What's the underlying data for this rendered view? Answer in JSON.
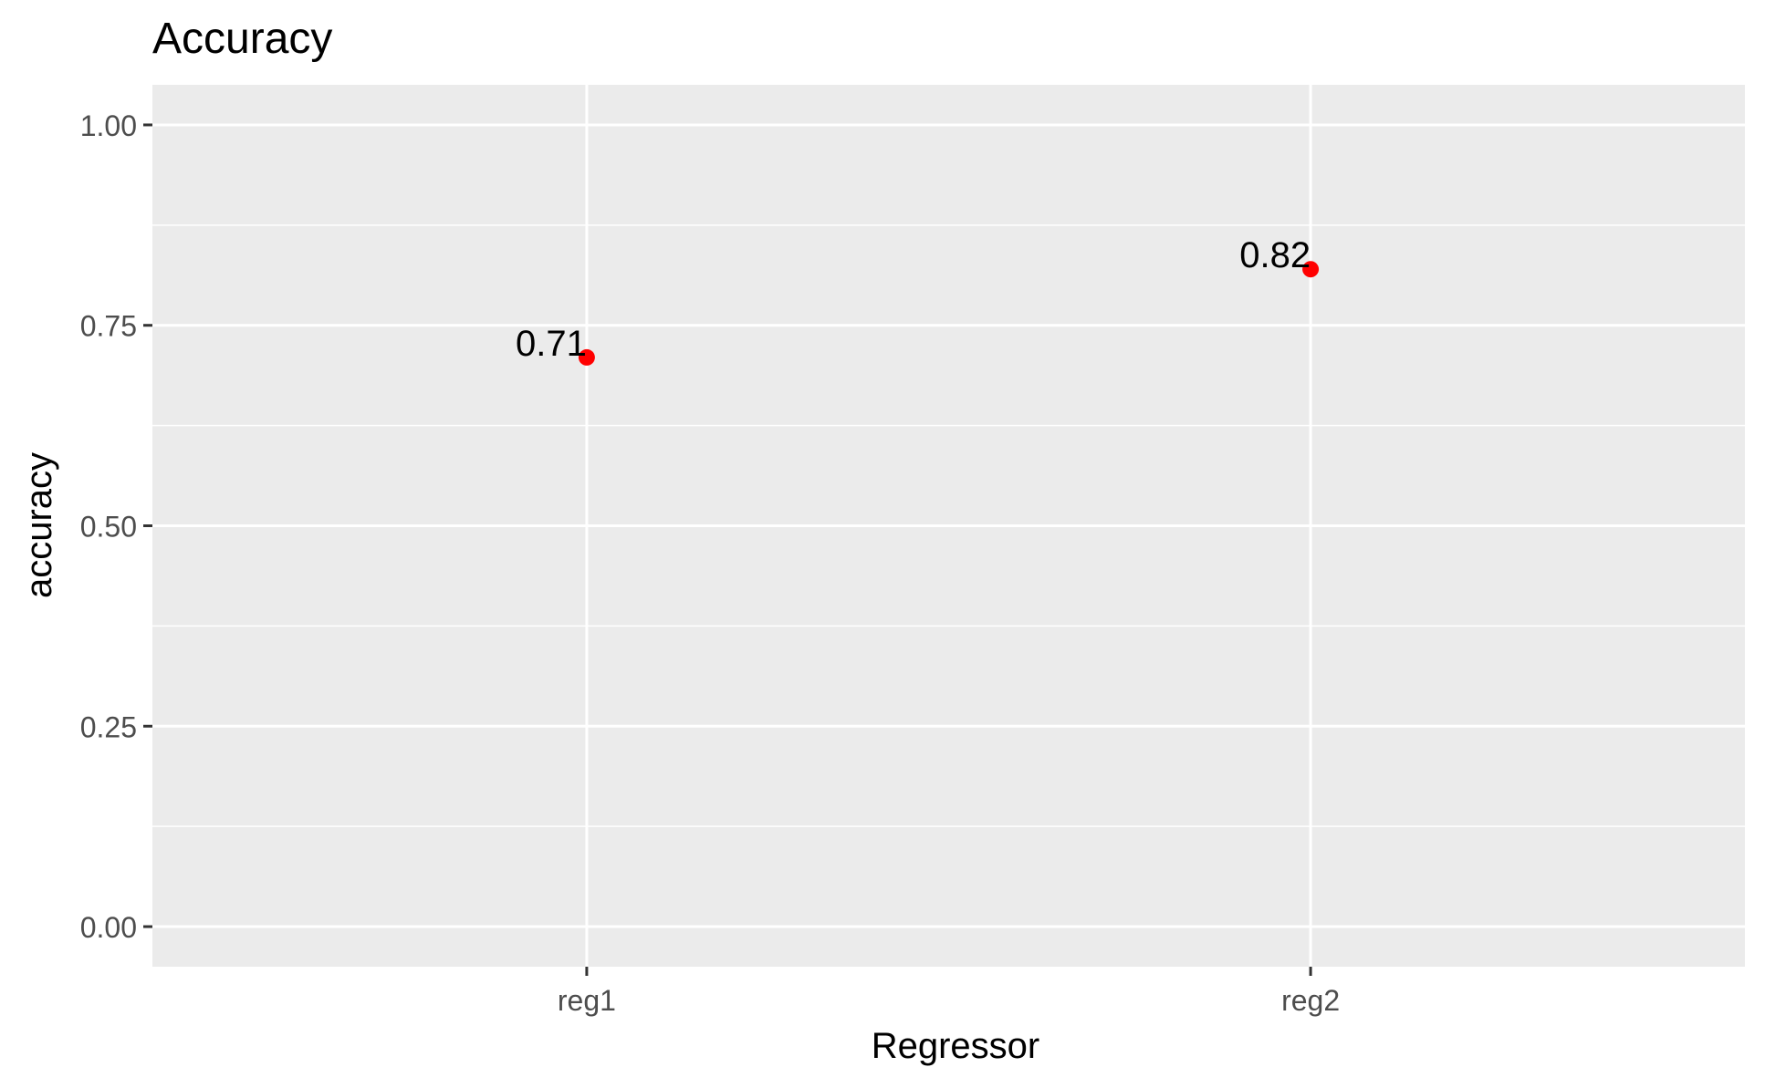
{
  "chart_data": {
    "type": "scatter",
    "title": "Accuracy",
    "xlabel": "Regressor",
    "ylabel": "accuracy",
    "categories": [
      "reg1",
      "reg2"
    ],
    "series": [
      {
        "values": [
          0.71,
          0.82
        ],
        "labels": [
          "0.71",
          "0.82"
        ],
        "color": "#FF0000"
      }
    ],
    "ylim": [
      -0.05,
      1.05
    ],
    "y_ticks": [
      0,
      0.25,
      0.5,
      0.75,
      1
    ],
    "y_tick_labels": [
      "0.00",
      "0.25",
      "0.50",
      "0.75",
      "1.00"
    ],
    "grid": true,
    "legend": "none",
    "colors": {
      "panel_background": "#EBEBEB",
      "grid_line": "#FFFFFF",
      "point": "#FF0000",
      "tick_text": "#4D4D4D",
      "axis_title": "#000000"
    }
  }
}
